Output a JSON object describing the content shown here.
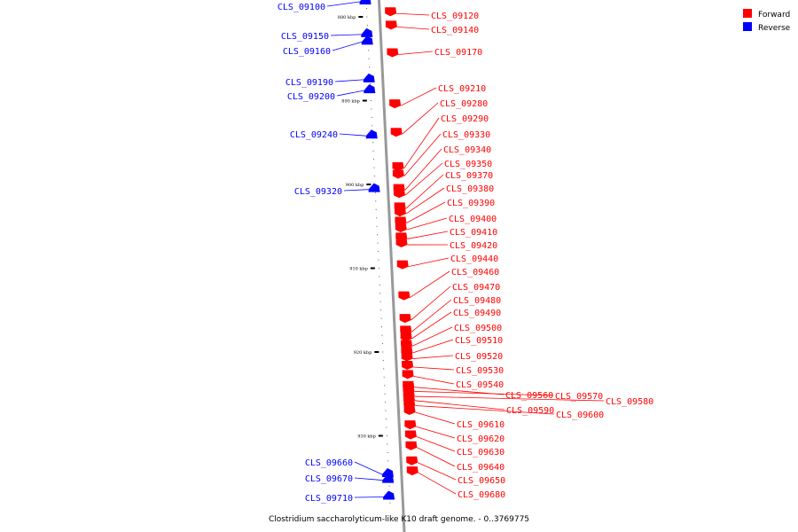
{
  "caption": "Clostridium saccharolyticum-like K10 draft genome. - 0..3769775",
  "legend": [
    {
      "label": "Forward",
      "color": "#ff0000"
    },
    {
      "label": "Reverse",
      "color": "#0000ff"
    }
  ],
  "colors": {
    "forward": "#ff0000",
    "reverse": "#0000ff",
    "backbone": "#999999"
  },
  "ticks": [
    {
      "label": "880 kbp",
      "kbp": 880
    },
    {
      "label": "890 kbp",
      "kbp": 890
    },
    {
      "label": "900 kbp",
      "kbp": 900
    },
    {
      "label": "910 kbp",
      "kbp": 910
    },
    {
      "label": "920 kbp",
      "kbp": 920
    },
    {
      "label": "930 kbp",
      "kbp": 930
    }
  ],
  "reverse_genes": [
    {
      "name": "CLS_09100",
      "kbp": 878.2
    },
    {
      "name": "CLS_09150",
      "kbp": 882.1
    },
    {
      "name": "CLS_09160",
      "kbp": 883.0
    },
    {
      "name": "CLS_09190",
      "kbp": 887.5
    },
    {
      "name": "CLS_09200",
      "kbp": 888.8
    },
    {
      "name": "CLS_09240",
      "kbp": 894.2
    },
    {
      "name": "CLS_09320",
      "kbp": 900.6
    },
    {
      "name": "CLS_09660",
      "kbp": 934.6
    },
    {
      "name": "CLS_09670",
      "kbp": 935.3
    },
    {
      "name": "CLS_09710",
      "kbp": 937.3
    }
  ],
  "forward_genes": [
    {
      "name": "CLS_09120",
      "kbp": 879.6
    },
    {
      "name": "CLS_09140",
      "kbp": 881.2
    },
    {
      "name": "CLS_09170",
      "kbp": 884.5
    },
    {
      "name": "CLS_09210",
      "kbp": 890.6
    },
    {
      "name": "CLS_09280",
      "kbp": 894.0
    },
    {
      "name": "CLS_09290",
      "kbp": 898.1
    },
    {
      "name": "CLS_09330",
      "kbp": 899.0
    },
    {
      "name": "CLS_09340",
      "kbp": 900.7
    },
    {
      "name": "CLS_09350",
      "kbp": 901.3
    },
    {
      "name": "CLS_09370",
      "kbp": 902.9
    },
    {
      "name": "CLS_09380",
      "kbp": 903.5
    },
    {
      "name": "CLS_09390",
      "kbp": 904.6
    },
    {
      "name": "CLS_09400",
      "kbp": 905.4
    },
    {
      "name": "CLS_09410",
      "kbp": 906.5
    },
    {
      "name": "CLS_09420",
      "kbp": 907.2
    },
    {
      "name": "CLS_09440",
      "kbp": 909.8
    },
    {
      "name": "CLS_09460",
      "kbp": 913.5
    },
    {
      "name": "CLS_09470",
      "kbp": 916.2
    },
    {
      "name": "CLS_09480",
      "kbp": 917.6
    },
    {
      "name": "CLS_09490",
      "kbp": 918.4
    },
    {
      "name": "CLS_09500",
      "kbp": 919.3
    },
    {
      "name": "CLS_09510",
      "kbp": 920.1
    },
    {
      "name": "CLS_09520",
      "kbp": 920.8
    },
    {
      "name": "CLS_09530",
      "kbp": 921.8
    },
    {
      "name": "CLS_09540",
      "kbp": 922.9
    },
    {
      "name": "CLS_09560",
      "kbp": 924.2
    },
    {
      "name": "CLS_09570",
      "kbp": 924.7
    },
    {
      "name": "CLS_09580",
      "kbp": 925.3
    },
    {
      "name": "CLS_09590",
      "kbp": 925.8
    },
    {
      "name": "CLS_09600",
      "kbp": 926.4
    },
    {
      "name": "CLS_09610",
      "kbp": 927.2
    },
    {
      "name": "CLS_09620",
      "kbp": 928.9
    },
    {
      "name": "CLS_09630",
      "kbp": 930.1
    },
    {
      "name": "CLS_09640",
      "kbp": 931.4
    },
    {
      "name": "CLS_09650",
      "kbp": 933.2
    },
    {
      "name": "CLS_09680",
      "kbp": 934.4
    }
  ]
}
